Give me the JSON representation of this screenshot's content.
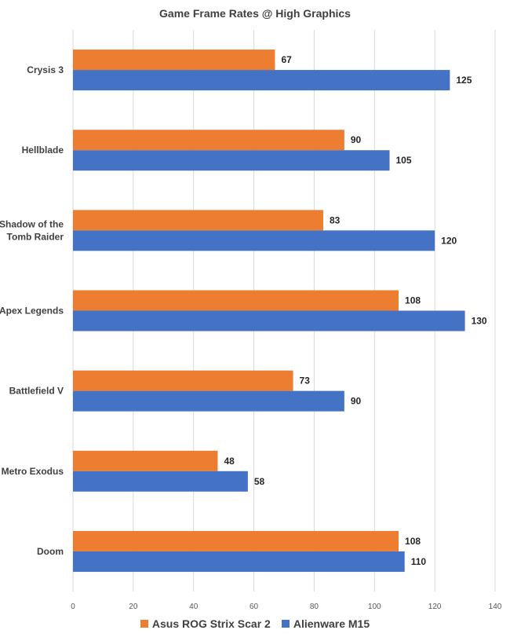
{
  "chart_data": {
    "type": "bar",
    "orientation": "horizontal",
    "title": "Game Frame Rates @ High Graphics",
    "xlabel": "",
    "ylabel": "",
    "categories": [
      [
        "Crysis 3"
      ],
      [
        "Hellblade"
      ],
      [
        "Shadow of the",
        "Tomb Raider"
      ],
      [
        "Apex Legends"
      ],
      [
        "Battlefield V"
      ],
      [
        "Metro Exodus"
      ],
      [
        "Doom"
      ]
    ],
    "series": [
      {
        "name": "Asus ROG Strix Scar 2",
        "color": "#ED7D31",
        "values": [
          67,
          90,
          83,
          108,
          73,
          48,
          108
        ]
      },
      {
        "name": "Alienware M15",
        "color": "#4472C4",
        "values": [
          125,
          105,
          120,
          130,
          90,
          58,
          110
        ]
      }
    ],
    "xlim": [
      0,
      140
    ],
    "xticks": [
      "0",
      "20",
      "40",
      "60",
      "80",
      "100",
      "120",
      "140"
    ],
    "grid": true,
    "data_labels": true,
    "legend_position": "bottom"
  }
}
